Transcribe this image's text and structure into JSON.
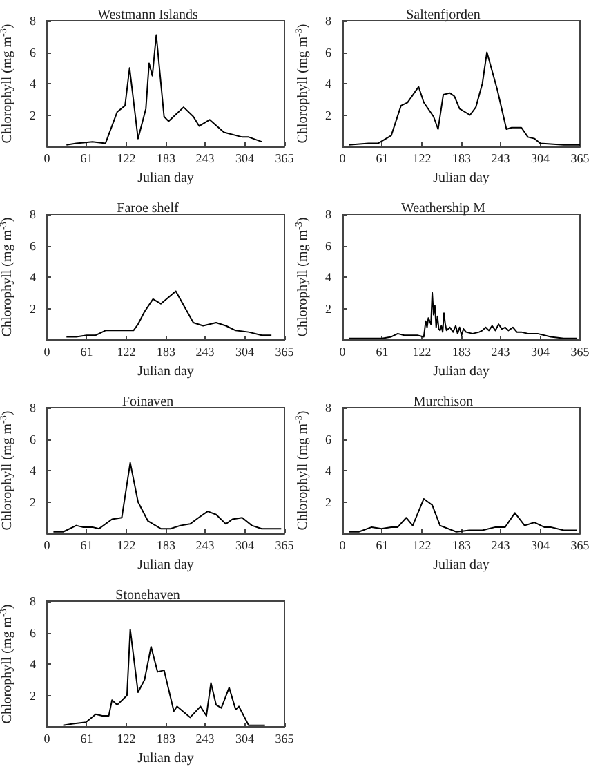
{
  "chart_data": [
    {
      "type": "line",
      "title": "Westmann Islands",
      "xlabel": "Julian day",
      "ylabel": "Chlorophyll (mg m$^{-3}$)",
      "xlim": [
        0,
        365
      ],
      "ylim": [
        0,
        8
      ],
      "xticks": [
        0,
        61,
        122,
        183,
        243,
        304,
        365
      ],
      "yticks": [
        2,
        4,
        6,
        8
      ],
      "x": [
        30,
        45,
        70,
        90,
        108,
        120,
        127,
        140,
        152,
        157,
        162,
        168,
        180,
        187,
        210,
        225,
        234,
        250,
        272,
        300,
        310,
        330
      ],
      "series": [
        {
          "color": "#000000",
          "values": [
            0.1,
            0.2,
            0.3,
            0.2,
            2.2,
            2.6,
            5.0,
            0.5,
            2.4,
            5.3,
            4.5,
            7.1,
            1.9,
            1.6,
            2.5,
            1.9,
            1.3,
            1.7,
            0.9,
            0.6,
            0.6,
            0.3
          ]
        }
      ]
    },
    {
      "type": "line",
      "title": "Saltenfjorden",
      "xlabel": "Julian day",
      "ylabel": "Chlorophyll (mg m$^{-3}$)",
      "xlim": [
        0,
        365
      ],
      "ylim": [
        0,
        8
      ],
      "xticks": [
        0,
        61,
        122,
        183,
        243,
        304,
        365
      ],
      "yticks": [
        2,
        4,
        6,
        8
      ],
      "x": [
        10,
        40,
        55,
        75,
        90,
        100,
        117,
        125,
        140,
        147,
        155,
        165,
        172,
        180,
        196,
        205,
        215,
        222,
        238,
        252,
        260,
        275,
        285,
        295,
        304,
        340,
        365
      ],
      "series": [
        {
          "color": "#000000",
          "values": [
            0.1,
            0.2,
            0.2,
            0.7,
            2.6,
            2.8,
            3.8,
            2.8,
            1.9,
            1.1,
            3.3,
            3.4,
            3.2,
            2.4,
            2.0,
            2.5,
            4.0,
            6.0,
            3.6,
            1.1,
            1.2,
            1.2,
            0.6,
            0.5,
            0.2,
            0.1,
            0.1
          ]
        }
      ]
    },
    {
      "type": "line",
      "title": "Faroe shelf",
      "xlabel": "Julian day",
      "ylabel": "Chlorophyll (mg m$^{-3}$)",
      "xlim": [
        0,
        365
      ],
      "ylim": [
        0,
        8
      ],
      "xticks": [
        0,
        61,
        122,
        183,
        243,
        304,
        365
      ],
      "yticks": [
        2,
        4,
        6,
        8
      ],
      "x": [
        30,
        45,
        61,
        75,
        90,
        105,
        133,
        140,
        150,
        163,
        175,
        198,
        225,
        240,
        260,
        275,
        290,
        310,
        330,
        345
      ],
      "series": [
        {
          "color": "#000000",
          "values": [
            0.2,
            0.2,
            0.3,
            0.3,
            0.6,
            0.6,
            0.6,
            1.0,
            1.8,
            2.6,
            2.3,
            3.1,
            1.1,
            0.9,
            1.1,
            0.9,
            0.6,
            0.5,
            0.3,
            0.3
          ]
        }
      ]
    },
    {
      "type": "line",
      "title": "Weathership M",
      "xlabel": "Julian day",
      "ylabel": "Chlorophyll (mg m$^{-3}$)",
      "xlim": [
        0,
        365
      ],
      "ylim": [
        0,
        8
      ],
      "xticks": [
        0,
        61,
        122,
        183,
        243,
        304,
        365
      ],
      "yticks": [
        2,
        4,
        6,
        8
      ],
      "x": [
        10,
        61,
        75,
        85,
        95,
        105,
        115,
        125,
        128,
        130,
        132,
        136,
        138,
        140,
        142,
        144,
        146,
        148,
        150,
        152,
        154,
        156,
        158,
        160,
        165,
        170,
        174,
        177,
        180,
        183,
        186,
        190,
        200,
        210,
        215,
        220,
        225,
        230,
        235,
        240,
        245,
        250,
        255,
        262,
        268,
        275,
        285,
        300,
        320,
        340,
        360
      ],
      "series": [
        {
          "color": "#000000",
          "values": [
            0.1,
            0.1,
            0.2,
            0.4,
            0.3,
            0.3,
            0.3,
            0.2,
            1.2,
            0.8,
            1.4,
            1.0,
            3.0,
            1.6,
            2.2,
            0.8,
            1.5,
            0.7,
            0.6,
            0.9,
            0.5,
            1.7,
            1.0,
            0.6,
            0.8,
            0.5,
            0.9,
            0.4,
            0.8,
            0.3,
            0.7,
            0.5,
            0.4,
            0.5,
            0.6,
            0.8,
            0.6,
            0.9,
            0.6,
            1.0,
            0.7,
            0.8,
            0.6,
            0.8,
            0.5,
            0.5,
            0.4,
            0.4,
            0.2,
            0.1,
            0.1
          ]
        }
      ]
    },
    {
      "type": "line",
      "title": "Foinaven",
      "xlabel": "Julian day",
      "ylabel": "Chlorophyll (mg m$^{-3}$)",
      "xlim": [
        0,
        365
      ],
      "ylim": [
        0,
        8
      ],
      "xticks": [
        0,
        61,
        122,
        183,
        243,
        304,
        365
      ],
      "yticks": [
        2,
        4,
        6,
        8
      ],
      "x": [
        10,
        25,
        45,
        55,
        70,
        80,
        100,
        115,
        128,
        140,
        155,
        175,
        190,
        205,
        220,
        233,
        247,
        260,
        275,
        285,
        300,
        315,
        330,
        360
      ],
      "series": [
        {
          "color": "#000000",
          "values": [
            0.1,
            0.1,
            0.5,
            0.4,
            0.4,
            0.3,
            0.9,
            1.0,
            4.5,
            2.0,
            0.8,
            0.3,
            0.3,
            0.5,
            0.6,
            1.0,
            1.4,
            1.2,
            0.6,
            0.9,
            1.0,
            0.5,
            0.3,
            0.3
          ]
        }
      ]
    },
    {
      "type": "line",
      "title": "Murchison",
      "xlabel": "Julian day",
      "ylabel": "Chlorophyll (mg m$^{-3}$)",
      "xlim": [
        0,
        365
      ],
      "ylim": [
        0,
        8
      ],
      "xticks": [
        0,
        61,
        122,
        183,
        243,
        304,
        365
      ],
      "yticks": [
        2,
        4,
        6,
        8
      ],
      "x": [
        10,
        25,
        45,
        60,
        75,
        85,
        98,
        108,
        125,
        138,
        150,
        175,
        195,
        215,
        235,
        250,
        265,
        280,
        295,
        310,
        320,
        340,
        360
      ],
      "series": [
        {
          "color": "#000000",
          "values": [
            0.1,
            0.1,
            0.4,
            0.3,
            0.4,
            0.4,
            1.0,
            0.5,
            2.2,
            1.8,
            0.5,
            0.1,
            0.2,
            0.2,
            0.4,
            0.4,
            1.3,
            0.5,
            0.7,
            0.4,
            0.4,
            0.2,
            0.2
          ]
        }
      ]
    },
    {
      "type": "line",
      "title": "Stonehaven",
      "xlabel": "Julian day",
      "ylabel": "Chlorophyll (mg m$^{-3}$)",
      "xlim": [
        0,
        365
      ],
      "ylim": [
        0,
        8
      ],
      "xticks": [
        0,
        61,
        122,
        183,
        243,
        304,
        365
      ],
      "yticks": [
        2,
        4,
        6,
        8
      ],
      "x": [
        25,
        40,
        60,
        75,
        85,
        95,
        100,
        108,
        123,
        128,
        140,
        150,
        160,
        170,
        180,
        195,
        200,
        220,
        236,
        245,
        252,
        260,
        268,
        280,
        290,
        295,
        310,
        335
      ],
      "series": [
        {
          "color": "#000000",
          "values": [
            0.1,
            0.2,
            0.3,
            0.8,
            0.7,
            0.7,
            1.7,
            1.4,
            2.0,
            6.2,
            2.2,
            3.0,
            5.1,
            3.5,
            3.6,
            1.0,
            1.3,
            0.6,
            1.3,
            0.7,
            2.8,
            1.4,
            1.2,
            2.5,
            1.1,
            1.3,
            0.1,
            0.1
          ]
        }
      ]
    }
  ]
}
